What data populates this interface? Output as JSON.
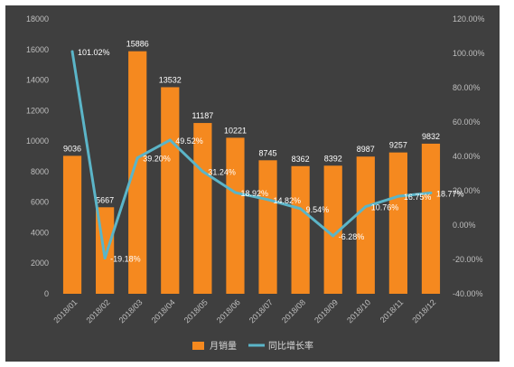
{
  "chart_data": {
    "type": "bar",
    "categories": [
      "2018/01",
      "2018/02",
      "2018/03",
      "2018/04",
      "2018/05",
      "2018/06",
      "2018/07",
      "2018/08",
      "2018/09",
      "2018/10",
      "2018/11",
      "2018/12"
    ],
    "series": [
      {
        "name": "月销量",
        "type": "bar",
        "axis": "left",
        "color": "#f5891f",
        "values": [
          9036,
          5667,
          15886,
          13532,
          11187,
          10221,
          8745,
          8362,
          8392,
          8987,
          9257,
          9832
        ],
        "labels": [
          "9036",
          "5667",
          "15886",
          "13532",
          "11187",
          "10221",
          "8745",
          "8362",
          "8392",
          "8987",
          "9257",
          "9832"
        ]
      },
      {
        "name": "同比增长率",
        "type": "line",
        "axis": "right",
        "color": "#5bb5c8",
        "values": [
          101.02,
          -19.18,
          39.2,
          49.52,
          31.24,
          18.92,
          14.82,
          9.54,
          -6.28,
          10.76,
          16.75,
          18.77
        ],
        "labels": [
          "101.02%",
          "-19.18%",
          "39.20%",
          "49.52%",
          "31.24%",
          "18.92%",
          "14.82%",
          "9.54%",
          "-6.28%",
          "10.76%",
          "16.75%",
          "18.77%"
        ]
      }
    ],
    "y_left": {
      "min": 0,
      "max": 18000,
      "step": 2000,
      "tick_labels": [
        "0",
        "2000",
        "4000",
        "6000",
        "8000",
        "10000",
        "12000",
        "14000",
        "16000",
        "18000"
      ]
    },
    "y_right": {
      "min": -40,
      "max": 120,
      "step": 20,
      "tick_labels": [
        "-40.00%",
        "-20.00%",
        "0.00%",
        "20.00%",
        "40.00%",
        "60.00%",
        "80.00%",
        "100.00%",
        "120.00%"
      ]
    },
    "legend_position": "bottom",
    "grid": false,
    "background": "#3f3f3f"
  }
}
